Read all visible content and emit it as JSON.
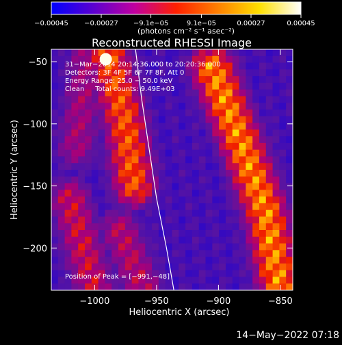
{
  "chart_data": {
    "type": "heatmap",
    "title": "Reconstructed RHESSI Image",
    "xlabel": "Heliocentric X (arcsec)",
    "ylabel": "Heliocentric Y (arcsec)",
    "xlim": [
      -1035,
      -840
    ],
    "ylim": [
      -234,
      -40
    ],
    "xticks": [
      -1000,
      -950,
      -900,
      -850
    ],
    "yticks": [
      -50,
      -100,
      -150,
      -200
    ],
    "xtick_labels": [
      "−1000",
      "−950",
      "−900",
      "−850"
    ],
    "ytick_labels": [
      "−50",
      "−100",
      "−150",
      "−200"
    ],
    "colorbar": {
      "ticks": [
        -0.00045,
        -0.00027,
        -9.1e-05,
        9.1e-05,
        0.00027,
        0.00045
      ],
      "tick_labels": [
        "−0.00045",
        "−0.00027",
        "−9.1e−05",
        "9.1e−05",
        "0.00027",
        "0.00045"
      ],
      "range": [
        -0.00045,
        0.00045
      ],
      "units_label": "(photons cm⁻² s⁻¹ asec⁻²)",
      "colormap": "rainbow-to-hot",
      "colors": [
        "#0000ff",
        "#5a00d0",
        "#c000a0",
        "#ff2000",
        "#ff8000",
        "#ffe000",
        "#ffffff"
      ]
    },
    "annotations": [
      "31−Mar−2014 20:14:36.000 to 20:20:36.000",
      "Detectors: 3F 4F 5F 6F 7F 8F, Att 0",
      "Energy Range: 25.0 − 50.0 keV",
      "Clean     Total counts: 9.49E+03"
    ],
    "peak_label": "Position of Peak = [−991,−48]",
    "peak_position": [
      -991,
      -48
    ],
    "limb_curve": [
      [
        -967,
        -40
      ],
      [
        -962,
        -80
      ],
      [
        -956,
        -120
      ],
      [
        -950,
        -160
      ],
      [
        -942,
        -200
      ],
      [
        -936,
        -234
      ]
    ],
    "ridges": [
      {
        "points": [
          [
            -990,
            -40
          ],
          [
            -975,
            -100
          ],
          [
            -968,
            -150
          ]
        ],
        "intensity": 0.8
      },
      {
        "points": [
          [
            -1005,
            -40
          ],
          [
            -1015,
            -120
          ]
        ],
        "intensity": 0.5
      },
      {
        "points": [
          [
            -905,
            -55
          ],
          [
            -880,
            -120
          ],
          [
            -862,
            -170
          ],
          [
            -850,
            -234
          ]
        ],
        "intensity": 0.9
      },
      {
        "points": [
          [
            -1020,
            -160
          ],
          [
            -1000,
            -234
          ]
        ],
        "intensity": 0.6
      },
      {
        "points": [
          [
            -980,
            -185
          ],
          [
            -960,
            -234
          ]
        ],
        "intensity": 0.55
      }
    ],
    "grid": false
  },
  "footer_date": "14−May−2022 07:18"
}
